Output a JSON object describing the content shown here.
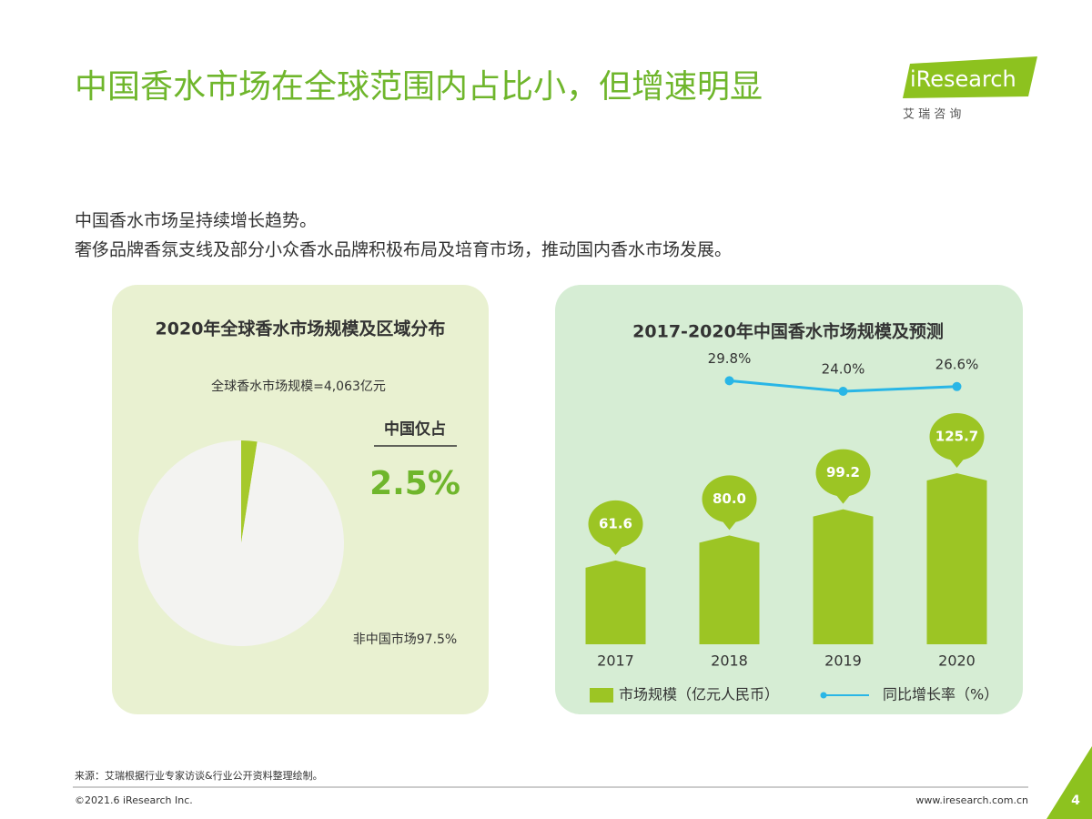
{
  "header": {
    "title": "中国香水市场在全球范围内占比小，但增速明显",
    "logo": "iResearch",
    "logo_sub": "艾 瑞 咨 询"
  },
  "intro": [
    "中国香水市场呈持续增长趋势。",
    "奢侈品牌香氛支线及部分小众香水品牌积极布局及培育市场，推动国内香水市场发展。"
  ],
  "chart_data": [
    {
      "type": "pie",
      "title": "2020年全球香水市场规模及区域分布",
      "subtitle": "全球香水市场规模=4,063亿元",
      "annotation": "中国仅占",
      "values": [
        2.5,
        97.5
      ],
      "value_labels": [
        "2.5%",
        "非中国市场97.5%"
      ],
      "colors": [
        "#a6c92b",
        "#f3f3f1"
      ]
    },
    {
      "type": "bar",
      "title": "2017-2020年中国香水市场规模及预测",
      "categories": [
        "2017",
        "2018",
        "2019",
        "2020"
      ],
      "series": [
        {
          "name": "市场规模（亿元人民币）",
          "color": "#9cc524",
          "values": [
            61.6,
            80.0,
            99.2,
            125.7
          ],
          "value_labels": [
            "61.6",
            "80.0",
            "99.2",
            "125.7"
          ]
        },
        {
          "name": "同比增长率（%）",
          "type": "line",
          "axis": "y2",
          "color": "#29b6e6",
          "values": [
            null,
            29.8,
            24.0,
            26.6
          ],
          "value_labels": [
            null,
            "29.8%",
            "24.0%",
            "26.6%"
          ]
        }
      ]
    }
  ],
  "footer": {
    "source": "来源：艾瑞根据行业专家访谈&行业公开资料整理绘制。",
    "copyright": "©2021.6 iResearch Inc.",
    "website": "www.iresearch.com.cn",
    "page": 4
  }
}
